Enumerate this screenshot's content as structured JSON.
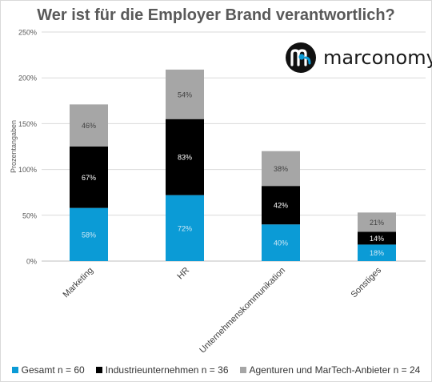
{
  "chart_data": {
    "type": "bar",
    "stacked": true,
    "title": "Wer ist für die Employer Brand verantwortlich?",
    "ylabel": "Prozentangaben",
    "xlabel": "",
    "ylim": [
      0,
      250
    ],
    "yticks": [
      "0%",
      "50%",
      "100%",
      "150%",
      "200%",
      "250%"
    ],
    "ytick_values": [
      0,
      50,
      100,
      150,
      200,
      250
    ],
    "grid": true,
    "legend_position": "bottom",
    "categories": [
      "Marketing",
      "HR",
      "Unternehmenskommunikation",
      "Sonstiges"
    ],
    "series": [
      {
        "name": "Gesamt n = 60",
        "color": "#0b9bd6",
        "label_color": "#cfe9f6",
        "values": [
          58,
          72,
          40,
          18
        ],
        "labels": [
          "58%",
          "72%",
          "40%",
          "18%"
        ]
      },
      {
        "name": "Industrieunternehmen n = 36",
        "color": "#000000",
        "label_color": "#ffffff",
        "values": [
          67,
          83,
          42,
          14
        ],
        "labels": [
          "67%",
          "83%",
          "42%",
          "14%"
        ]
      },
      {
        "name": "Agenturen und MarTech-Anbieter n = 24",
        "color": "#a6a6a6",
        "label_color": "#404040",
        "values": [
          46,
          54,
          38,
          21
        ],
        "labels": [
          "46%",
          "54%",
          "38%",
          "21%"
        ]
      }
    ]
  },
  "logo": {
    "text": "marconomy",
    "icon": "marconomy-m-logo-icon"
  }
}
